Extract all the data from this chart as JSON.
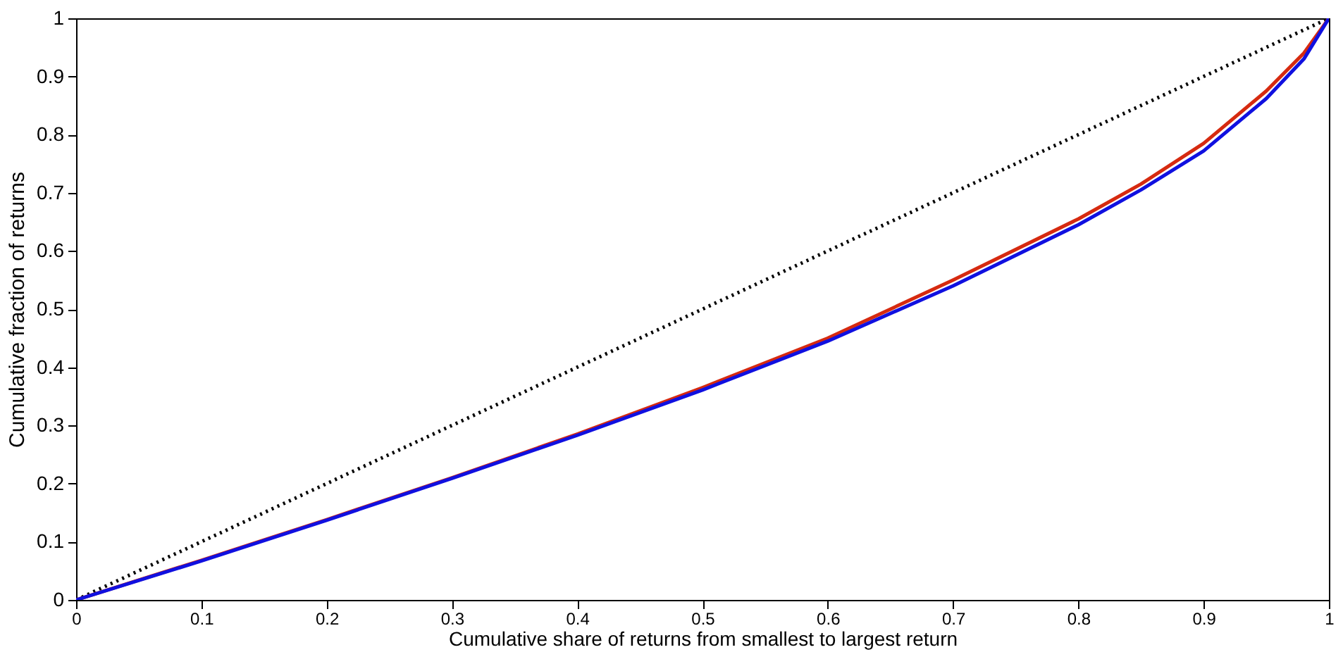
{
  "chart_data": {
    "type": "line",
    "xlabel": "Cumulative share of returns from smallest to largest return",
    "ylabel": "Cumulative fraction of returns",
    "xlim": [
      0,
      1
    ],
    "ylim": [
      0,
      1
    ],
    "xticks": [
      0,
      0.1,
      0.2,
      0.3,
      0.4,
      0.5,
      0.6,
      0.7,
      0.8,
      0.9,
      1
    ],
    "yticks": [
      0,
      0.1,
      0.2,
      0.3,
      0.4,
      0.5,
      0.6,
      0.7,
      0.8,
      0.9,
      1
    ],
    "grid": false,
    "marker": "none",
    "series": [
      {
        "color": "#000000",
        "line_style": "dotted",
        "x": [
          0,
          1
        ],
        "values": [
          0,
          1
        ]
      },
      {
        "color": "#d62a10",
        "line_style": "solid",
        "x": [
          0,
          0.1,
          0.2,
          0.3,
          0.4,
          0.5,
          0.6,
          0.7,
          0.8,
          0.85,
          0.9,
          0.95,
          0.98,
          1
        ],
        "values": [
          0,
          0.068,
          0.138,
          0.21,
          0.285,
          0.365,
          0.45,
          0.55,
          0.655,
          0.715,
          0.785,
          0.875,
          0.94,
          1
        ]
      },
      {
        "color": "#1010e0",
        "line_style": "solid",
        "x": [
          0,
          0.1,
          0.2,
          0.3,
          0.4,
          0.5,
          0.6,
          0.7,
          0.8,
          0.85,
          0.9,
          0.95,
          0.98,
          1
        ],
        "values": [
          0,
          0.067,
          0.137,
          0.209,
          0.283,
          0.361,
          0.445,
          0.54,
          0.645,
          0.705,
          0.772,
          0.862,
          0.93,
          1
        ]
      }
    ]
  }
}
